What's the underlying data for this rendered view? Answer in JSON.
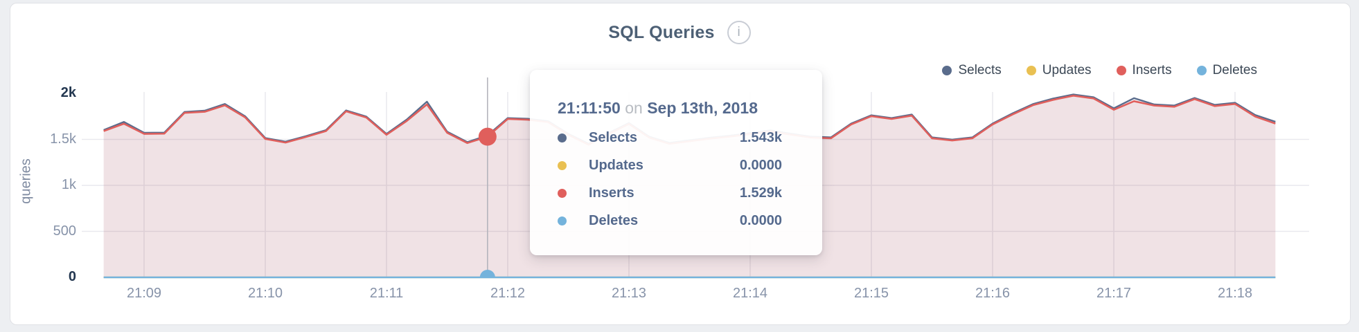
{
  "card": {
    "title": "SQL Queries",
    "info_icon_glyph": "i"
  },
  "colors": {
    "selects": "#5a6c8c",
    "updates": "#e9c052",
    "inserts": "#e05f5c",
    "deletes": "#74b3dc",
    "crosshair": "#b4b4bc",
    "grid": "#e9e9ee",
    "accent_text": "#54698d"
  },
  "legend": [
    {
      "label": "Selects",
      "color": "#5a6c8c"
    },
    {
      "label": "Updates",
      "color": "#e9c052"
    },
    {
      "label": "Inserts",
      "color": "#e05f5c"
    },
    {
      "label": "Deletes",
      "color": "#74b3dc"
    }
  ],
  "tooltip": {
    "time": "21:11:50",
    "on_word": "on",
    "date": "Sep 13th, 2018",
    "rows": [
      {
        "label": "Selects",
        "value": "1.543k",
        "color": "#5a6c8c"
      },
      {
        "label": "Updates",
        "value": "0.0000",
        "color": "#e9c052"
      },
      {
        "label": "Inserts",
        "value": "1.529k",
        "color": "#e05f5c"
      },
      {
        "label": "Deletes",
        "value": "0.0000",
        "color": "#74b3dc"
      }
    ]
  },
  "chart_data": {
    "type": "area",
    "title": "SQL Queries",
    "ylabel": "queries",
    "ylim": [
      0,
      2000
    ],
    "grid": true,
    "legend_position": "top-right",
    "y_ticks": [
      {
        "value": 0,
        "label": "0",
        "strong": true
      },
      {
        "value": 500,
        "label": "500",
        "strong": false
      },
      {
        "value": 1000,
        "label": "1k",
        "strong": false
      },
      {
        "value": 1500,
        "label": "1.5k",
        "strong": false
      },
      {
        "value": 2000,
        "label": "2k",
        "strong": true
      }
    ],
    "x_tick_labels": [
      "21:09",
      "21:10",
      "21:11",
      "21:12",
      "21:13",
      "21:14",
      "21:15",
      "21:16",
      "21:17",
      "21:18"
    ],
    "x": [
      "21:08:40",
      "21:08:50",
      "21:09:00",
      "21:09:10",
      "21:09:20",
      "21:09:30",
      "21:09:40",
      "21:09:50",
      "21:10:00",
      "21:10:10",
      "21:10:20",
      "21:10:30",
      "21:10:40",
      "21:10:50",
      "21:11:00",
      "21:11:10",
      "21:11:20",
      "21:11:30",
      "21:11:40",
      "21:11:50",
      "21:12:00",
      "21:12:10",
      "21:12:20",
      "21:12:30",
      "21:12:40",
      "21:12:50",
      "21:13:00",
      "21:13:10",
      "21:13:20",
      "21:13:30",
      "21:13:40",
      "21:13:50",
      "21:14:00",
      "21:14:10",
      "21:14:20",
      "21:14:30",
      "21:14:40",
      "21:14:50",
      "21:15:00",
      "21:15:10",
      "21:15:20",
      "21:15:30",
      "21:15:40",
      "21:15:50",
      "21:16:00",
      "21:16:10",
      "21:16:20",
      "21:16:30",
      "21:16:40",
      "21:16:50",
      "21:17:00",
      "21:17:10",
      "21:17:20",
      "21:17:30",
      "21:17:40",
      "21:17:50",
      "21:18:00",
      "21:18:10",
      "21:18:20"
    ],
    "series": [
      {
        "name": "Selects",
        "color": "#5a6c8c",
        "values": [
          1602,
          1690,
          1572,
          1574,
          1798,
          1812,
          1885,
          1752,
          1515,
          1475,
          1535,
          1600,
          1815,
          1748,
          1560,
          1715,
          1910,
          1584,
          1470,
          1543,
          1732,
          1724,
          1698,
          1560,
          1452,
          1570,
          1678,
          1530,
          1462,
          1490,
          1518,
          1540,
          1568,
          1598,
          1562,
          1530,
          1522,
          1672,
          1762,
          1732,
          1770,
          1522,
          1498,
          1522,
          1672,
          1784,
          1884,
          1944,
          1988,
          1958,
          1838,
          1948,
          1880,
          1868,
          1950,
          1875,
          1898,
          1765,
          1692
        ]
      },
      {
        "name": "Updates",
        "color": "#e9c052",
        "constant": 0
      },
      {
        "name": "Inserts",
        "color": "#e05f5c",
        "values": [
          1590,
          1670,
          1560,
          1562,
          1788,
          1800,
          1870,
          1740,
          1505,
          1465,
          1525,
          1590,
          1805,
          1738,
          1550,
          1700,
          1880,
          1572,
          1460,
          1529,
          1722,
          1714,
          1688,
          1550,
          1442,
          1560,
          1668,
          1520,
          1452,
          1480,
          1508,
          1530,
          1558,
          1588,
          1552,
          1520,
          1512,
          1662,
          1752,
          1722,
          1758,
          1512,
          1488,
          1512,
          1662,
          1772,
          1872,
          1930,
          1975,
          1945,
          1822,
          1915,
          1868,
          1855,
          1938,
          1862,
          1885,
          1748,
          1672
        ]
      },
      {
        "name": "Deletes",
        "color": "#74b3dc",
        "constant": 0
      }
    ],
    "hover": {
      "index": 19,
      "time": "21:11:50",
      "date": "Sep 13th, 2018",
      "values": {
        "Selects": 1543,
        "Updates": 0,
        "Inserts": 1529,
        "Deletes": 0
      }
    }
  }
}
